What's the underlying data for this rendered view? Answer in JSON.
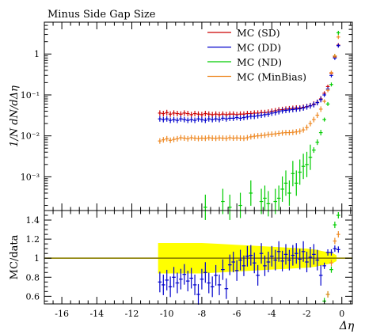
{
  "chart_data": [
    {
      "type": "scatter",
      "title": "Minus Side Gap Size",
      "ylabel": "1/N dN/dΔη",
      "yscale": "log",
      "xlim": [
        -17,
        0.6
      ],
      "ylim": [
        0.00015,
        6
      ],
      "y_tick_labels": [
        {
          "v": 1,
          "label": "1"
        },
        {
          "v": 0.1,
          "label": "10⁻¹"
        },
        {
          "v": 0.01,
          "label": "10⁻²"
        },
        {
          "v": 0.001,
          "label": "10⁻³"
        }
      ],
      "legend_position": "top-right",
      "series": [
        {
          "name": "MC (SD)",
          "color": "#cc0000",
          "points": [
            [
              -10.4,
              0.036
            ],
            [
              -10.2,
              0.035
            ],
            [
              -10.0,
              0.037
            ],
            [
              -9.8,
              0.034
            ],
            [
              -9.6,
              0.036
            ],
            [
              -9.4,
              0.035
            ],
            [
              -9.2,
              0.034
            ],
            [
              -9.0,
              0.036
            ],
            [
              -8.8,
              0.035
            ],
            [
              -8.6,
              0.033
            ],
            [
              -8.4,
              0.035
            ],
            [
              -8.2,
              0.034
            ],
            [
              -8.0,
              0.033
            ],
            [
              -7.8,
              0.035
            ],
            [
              -7.6,
              0.034
            ],
            [
              -7.4,
              0.033
            ],
            [
              -7.2,
              0.034
            ],
            [
              -7.0,
              0.033
            ],
            [
              -6.8,
              0.034
            ],
            [
              -6.6,
              0.033
            ],
            [
              -6.4,
              0.034
            ],
            [
              -6.2,
              0.034
            ],
            [
              -6.0,
              0.033
            ],
            [
              -5.8,
              0.034
            ],
            [
              -5.6,
              0.034
            ],
            [
              -5.4,
              0.035
            ],
            [
              -5.2,
              0.035
            ],
            [
              -5.0,
              0.036
            ],
            [
              -4.8,
              0.036
            ],
            [
              -4.6,
              0.037
            ],
            [
              -4.4,
              0.037
            ],
            [
              -4.2,
              0.038
            ],
            [
              -4.0,
              0.04
            ],
            [
              -3.8,
              0.041
            ],
            [
              -3.6,
              0.043
            ],
            [
              -3.4,
              0.044
            ],
            [
              -3.2,
              0.045
            ],
            [
              -3.0,
              0.046
            ],
            [
              -2.8,
              0.047
            ],
            [
              -2.6,
              0.048
            ],
            [
              -2.4,
              0.048
            ],
            [
              -2.2,
              0.05
            ],
            [
              -2.0,
              0.052
            ],
            [
              -1.8,
              0.055
            ],
            [
              -1.6,
              0.06
            ],
            [
              -1.4,
              0.066
            ],
            [
              -1.2,
              0.08
            ],
            [
              -1.0,
              0.11
            ],
            [
              -0.8,
              0.16
            ],
            [
              -0.6,
              0.34
            ],
            [
              -0.4,
              0.85
            ],
            [
              -0.2,
              1.65
            ]
          ]
        },
        {
          "name": "MC (DD)",
          "color": "#0000cc",
          "points": [
            [
              -10.4,
              0.026
            ],
            [
              -10.2,
              0.025
            ],
            [
              -10.0,
              0.026
            ],
            [
              -9.8,
              0.024
            ],
            [
              -9.6,
              0.025
            ],
            [
              -9.4,
              0.024
            ],
            [
              -9.2,
              0.026
            ],
            [
              -9.0,
              0.025
            ],
            [
              -8.8,
              0.024
            ],
            [
              -8.6,
              0.025
            ],
            [
              -8.4,
              0.024
            ],
            [
              -8.2,
              0.026
            ],
            [
              -8.0,
              0.025
            ],
            [
              -7.8,
              0.024
            ],
            [
              -7.6,
              0.026
            ],
            [
              -7.4,
              0.025
            ],
            [
              -7.2,
              0.026
            ],
            [
              -7.0,
              0.025
            ],
            [
              -6.8,
              0.027
            ],
            [
              -6.6,
              0.026
            ],
            [
              -6.4,
              0.027
            ],
            [
              -6.2,
              0.027
            ],
            [
              -6.0,
              0.028
            ],
            [
              -5.8,
              0.027
            ],
            [
              -5.6,
              0.028
            ],
            [
              -5.4,
              0.029
            ],
            [
              -5.2,
              0.03
            ],
            [
              -5.0,
              0.03
            ],
            [
              -4.8,
              0.031
            ],
            [
              -4.6,
              0.032
            ],
            [
              -4.4,
              0.033
            ],
            [
              -4.2,
              0.034
            ],
            [
              -4.0,
              0.036
            ],
            [
              -3.8,
              0.037
            ],
            [
              -3.6,
              0.039
            ],
            [
              -3.4,
              0.041
            ],
            [
              -3.2,
              0.042
            ],
            [
              -3.0,
              0.043
            ],
            [
              -2.8,
              0.044
            ],
            [
              -2.6,
              0.045
            ],
            [
              -2.4,
              0.046
            ],
            [
              -2.2,
              0.048
            ],
            [
              -2.0,
              0.051
            ],
            [
              -1.8,
              0.054
            ],
            [
              -1.6,
              0.058
            ],
            [
              -1.4,
              0.065
            ],
            [
              -1.2,
              0.077
            ],
            [
              -1.0,
              0.1
            ],
            [
              -0.8,
              0.14
            ],
            [
              -0.6,
              0.3
            ],
            [
              -0.4,
              0.8
            ],
            [
              -0.2,
              1.6
            ]
          ]
        },
        {
          "name": "MC (ND)",
          "color": "#00cc00",
          "points": [
            [
              -7.8,
              0.00018
            ],
            [
              -6.8,
              0.00025
            ],
            [
              -6.4,
              0.00018
            ],
            [
              -5.8,
              0.0002
            ],
            [
              -5.2,
              0.0004
            ],
            [
              -4.6,
              0.00025
            ],
            [
              -4.4,
              0.0003
            ],
            [
              -4.2,
              0.00022
            ],
            [
              -3.8,
              0.00025
            ],
            [
              -3.6,
              0.0003
            ],
            [
              -3.4,
              0.0005
            ],
            [
              -3.2,
              0.0007
            ],
            [
              -3.0,
              0.0004
            ],
            [
              -2.8,
              0.0012
            ],
            [
              -2.6,
              0.0007
            ],
            [
              -2.4,
              0.0013
            ],
            [
              -2.2,
              0.0018
            ],
            [
              -2.0,
              0.002
            ],
            [
              -1.8,
              0.003
            ],
            [
              -1.6,
              0.0045
            ],
            [
              -1.4,
              0.007
            ],
            [
              -1.2,
              0.012
            ],
            [
              -1.0,
              0.025
            ],
            [
              -0.8,
              0.06
            ],
            [
              -0.6,
              0.18
            ],
            [
              -0.4,
              0.9
            ],
            [
              -0.2,
              3.3
            ]
          ]
        },
        {
          "name": "MC (MinBias)",
          "color": "#ee8822",
          "points": [
            [
              -10.4,
              0.0075
            ],
            [
              -10.2,
              0.008
            ],
            [
              -10.0,
              0.0085
            ],
            [
              -9.8,
              0.0078
            ],
            [
              -9.6,
              0.0082
            ],
            [
              -9.4,
              0.0085
            ],
            [
              -9.2,
              0.009
            ],
            [
              -9.0,
              0.0088
            ],
            [
              -8.8,
              0.0085
            ],
            [
              -8.6,
              0.009
            ],
            [
              -8.4,
              0.0088
            ],
            [
              -8.2,
              0.0086
            ],
            [
              -8.0,
              0.0088
            ],
            [
              -7.8,
              0.0087
            ],
            [
              -7.6,
              0.009
            ],
            [
              -7.4,
              0.0088
            ],
            [
              -7.2,
              0.0087
            ],
            [
              -7.0,
              0.0089
            ],
            [
              -6.8,
              0.0088
            ],
            [
              -6.6,
              0.0087
            ],
            [
              -6.4,
              0.009
            ],
            [
              -6.2,
              0.0088
            ],
            [
              -6.0,
              0.0089
            ],
            [
              -5.8,
              0.0088
            ],
            [
              -5.6,
              0.0087
            ],
            [
              -5.4,
              0.009
            ],
            [
              -5.2,
              0.0095
            ],
            [
              -5.0,
              0.0098
            ],
            [
              -4.8,
              0.01
            ],
            [
              -4.6,
              0.0102
            ],
            [
              -4.4,
              0.0104
            ],
            [
              -4.2,
              0.0108
            ],
            [
              -4.0,
              0.011
            ],
            [
              -3.8,
              0.0112
            ],
            [
              -3.6,
              0.0115
            ],
            [
              -3.4,
              0.0118
            ],
            [
              -3.2,
              0.012
            ],
            [
              -3.0,
              0.012
            ],
            [
              -2.8,
              0.0122
            ],
            [
              -2.6,
              0.0125
            ],
            [
              -2.4,
              0.013
            ],
            [
              -2.2,
              0.014
            ],
            [
              -2.0,
              0.016
            ],
            [
              -1.8,
              0.02
            ],
            [
              -1.6,
              0.025
            ],
            [
              -1.4,
              0.032
            ],
            [
              -1.2,
              0.045
            ],
            [
              -1.0,
              0.07
            ],
            [
              -0.8,
              0.13
            ],
            [
              -0.6,
              0.35
            ],
            [
              -0.4,
              0.9
            ],
            [
              -0.2,
              2.6
            ]
          ]
        }
      ]
    },
    {
      "type": "scatter",
      "ylabel": "MC/data",
      "xlabel": "Δη",
      "xlim": [
        -17,
        0.6
      ],
      "ylim": [
        0.52,
        1.5
      ],
      "y_ticks": [
        0.6,
        0.8,
        1.0,
        1.2,
        1.4
      ],
      "y_tick_labels": [
        "0.6",
        "0.8",
        "1",
        "1.2",
        "1.4"
      ],
      "x_ticks": [
        -16,
        -14,
        -12,
        -10,
        -8,
        -6,
        -4,
        -2,
        0
      ],
      "x_tick_labels": [
        "-16",
        "-14",
        "-12",
        "-10",
        "-8",
        "-6",
        "-4",
        "-2",
        "0"
      ],
      "reference_line": 1.0,
      "band": {
        "color": "#ffff00",
        "x": [
          -10.5,
          -10.0,
          -9.0,
          -8.0,
          -7.0,
          -6.0,
          -5.0,
          -4.0,
          -3.0,
          -2.0,
          -1.5,
          -1.0,
          -0.5,
          -0.3
        ],
        "low": [
          0.84,
          0.84,
          0.84,
          0.84,
          0.85,
          0.86,
          0.87,
          0.88,
          0.89,
          0.9,
          0.91,
          0.93,
          0.95,
          0.97
        ],
        "high": [
          1.16,
          1.16,
          1.16,
          1.16,
          1.15,
          1.14,
          1.13,
          1.12,
          1.11,
          1.1,
          1.09,
          1.07,
          1.05,
          1.03
        ]
      },
      "series": [
        {
          "name": "MC (DD)",
          "color": "#0000cc",
          "points": [
            [
              -10.4,
              0.75
            ],
            [
              -10.2,
              0.72
            ],
            [
              -10.0,
              0.77
            ],
            [
              -9.8,
              0.7
            ],
            [
              -9.6,
              0.8
            ],
            [
              -9.4,
              0.74
            ],
            [
              -9.2,
              0.78
            ],
            [
              -9.0,
              0.83
            ],
            [
              -8.8,
              0.76
            ],
            [
              -8.6,
              0.79
            ],
            [
              -8.4,
              0.72
            ],
            [
              -8.2,
              0.62
            ],
            [
              -8.0,
              0.78
            ],
            [
              -7.8,
              0.85
            ],
            [
              -7.6,
              0.74
            ],
            [
              -7.4,
              0.7
            ],
            [
              -7.2,
              0.82
            ],
            [
              -7.0,
              0.72
            ],
            [
              -6.8,
              0.88
            ],
            [
              -6.6,
              0.68
            ],
            [
              -6.4,
              0.93
            ],
            [
              -6.2,
              0.96
            ],
            [
              -6.0,
              0.87
            ],
            [
              -5.8,
              0.98
            ],
            [
              -5.6,
              0.92
            ],
            [
              -5.4,
              1.02
            ],
            [
              -5.2,
              1.03
            ],
            [
              -5.0,
              0.95
            ],
            [
              -4.8,
              0.82
            ],
            [
              -4.6,
              1.05
            ],
            [
              -4.4,
              0.92
            ],
            [
              -4.2,
              0.96
            ],
            [
              -4.0,
              1.02
            ],
            [
              -3.8,
              0.98
            ],
            [
              -3.6,
              1.07
            ],
            [
              -3.4,
              0.97
            ],
            [
              -3.2,
              1.04
            ],
            [
              -3.0,
              0.98
            ],
            [
              -2.8,
              1.03
            ],
            [
              -2.6,
              1.05
            ],
            [
              -2.4,
              0.99
            ],
            [
              -2.2,
              1.07
            ],
            [
              -2.0,
              0.96
            ],
            [
              -1.8,
              1.01
            ],
            [
              -1.6,
              1.04
            ],
            [
              -1.4,
              0.98
            ],
            [
              -1.2,
              0.82
            ],
            [
              -1.0,
              0.92
            ],
            [
              -0.8,
              1.06
            ],
            [
              -0.6,
              1.06
            ],
            [
              -0.4,
              1.1
            ],
            [
              -0.2,
              1.09
            ]
          ]
        },
        {
          "name": "MC (ND)",
          "color": "#00cc00",
          "points": [
            [
              -1.0,
              0.55
            ],
            [
              -0.8,
              0.62
            ],
            [
              -0.6,
              0.88
            ],
            [
              -0.4,
              1.35
            ],
            [
              -0.2,
              1.45
            ]
          ]
        },
        {
          "name": "MC (MinBias)",
          "color": "#ee8822",
          "points": [
            [
              -0.8,
              0.62
            ],
            [
              -0.6,
              0.95
            ],
            [
              -0.4,
              1.18
            ],
            [
              -0.2,
              1.25
            ]
          ]
        }
      ]
    }
  ]
}
